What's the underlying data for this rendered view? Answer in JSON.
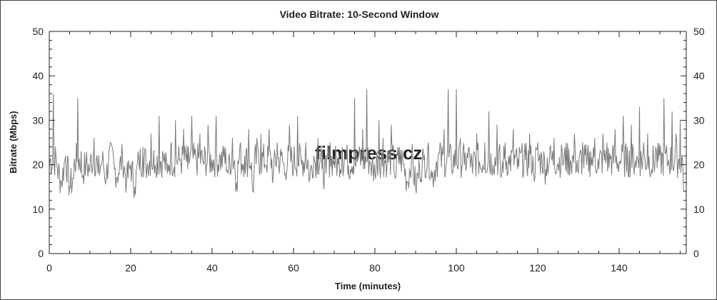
{
  "chart_data": {
    "type": "line",
    "title": "Video Bitrate: 10-Second Window",
    "xlabel": "Time (minutes)",
    "ylabel": "Bitrate (Mbps)",
    "xlim": [
      0,
      156.5
    ],
    "ylim": [
      0,
      50
    ],
    "x_ticks": [
      0,
      20,
      40,
      60,
      80,
      100,
      120,
      140
    ],
    "y_ticks": [
      0,
      10,
      20,
      30,
      40,
      50
    ],
    "y_axis_mirrored_right": true,
    "grid": false,
    "legend": "none",
    "line_color": "#7a7a7a",
    "x_step_minutes": 1,
    "values": [
      20,
      36,
      19,
      16,
      22,
      15,
      17,
      35,
      18,
      20,
      19,
      26,
      18,
      21,
      17,
      25,
      19,
      18,
      22,
      16,
      20,
      15,
      21,
      24,
      19,
      27,
      20,
      31,
      22,
      18,
      25,
      30,
      21,
      28,
      19,
      31,
      22,
      27,
      20,
      29,
      21,
      31,
      22,
      24,
      18,
      26,
      16,
      25,
      22,
      28,
      14,
      26,
      27,
      20,
      28,
      17,
      25,
      22,
      18,
      29,
      19,
      31,
      20,
      25,
      17,
      22,
      26,
      19,
      18,
      25,
      21,
      20,
      24,
      23,
      19,
      35,
      22,
      28,
      37,
      20,
      18,
      30,
      26,
      20,
      29,
      17,
      24,
      20,
      16,
      22,
      15,
      19,
      21,
      24,
      17,
      20,
      25,
      28,
      37,
      18,
      37,
      26,
      20,
      24,
      18,
      27,
      19,
      25,
      32,
      20,
      29,
      17,
      25,
      20,
      28,
      19,
      23,
      21,
      27,
      18,
      25,
      22,
      19,
      24,
      26,
      20,
      23,
      25,
      21,
      27,
      18,
      25,
      20,
      23,
      26,
      19,
      27,
      25,
      22,
      28,
      20,
      31,
      24,
      29,
      21,
      33,
      25,
      27,
      19,
      24,
      22,
      35,
      20,
      32,
      27,
      30,
      14
    ]
  },
  "watermark": "filmpress.cz"
}
